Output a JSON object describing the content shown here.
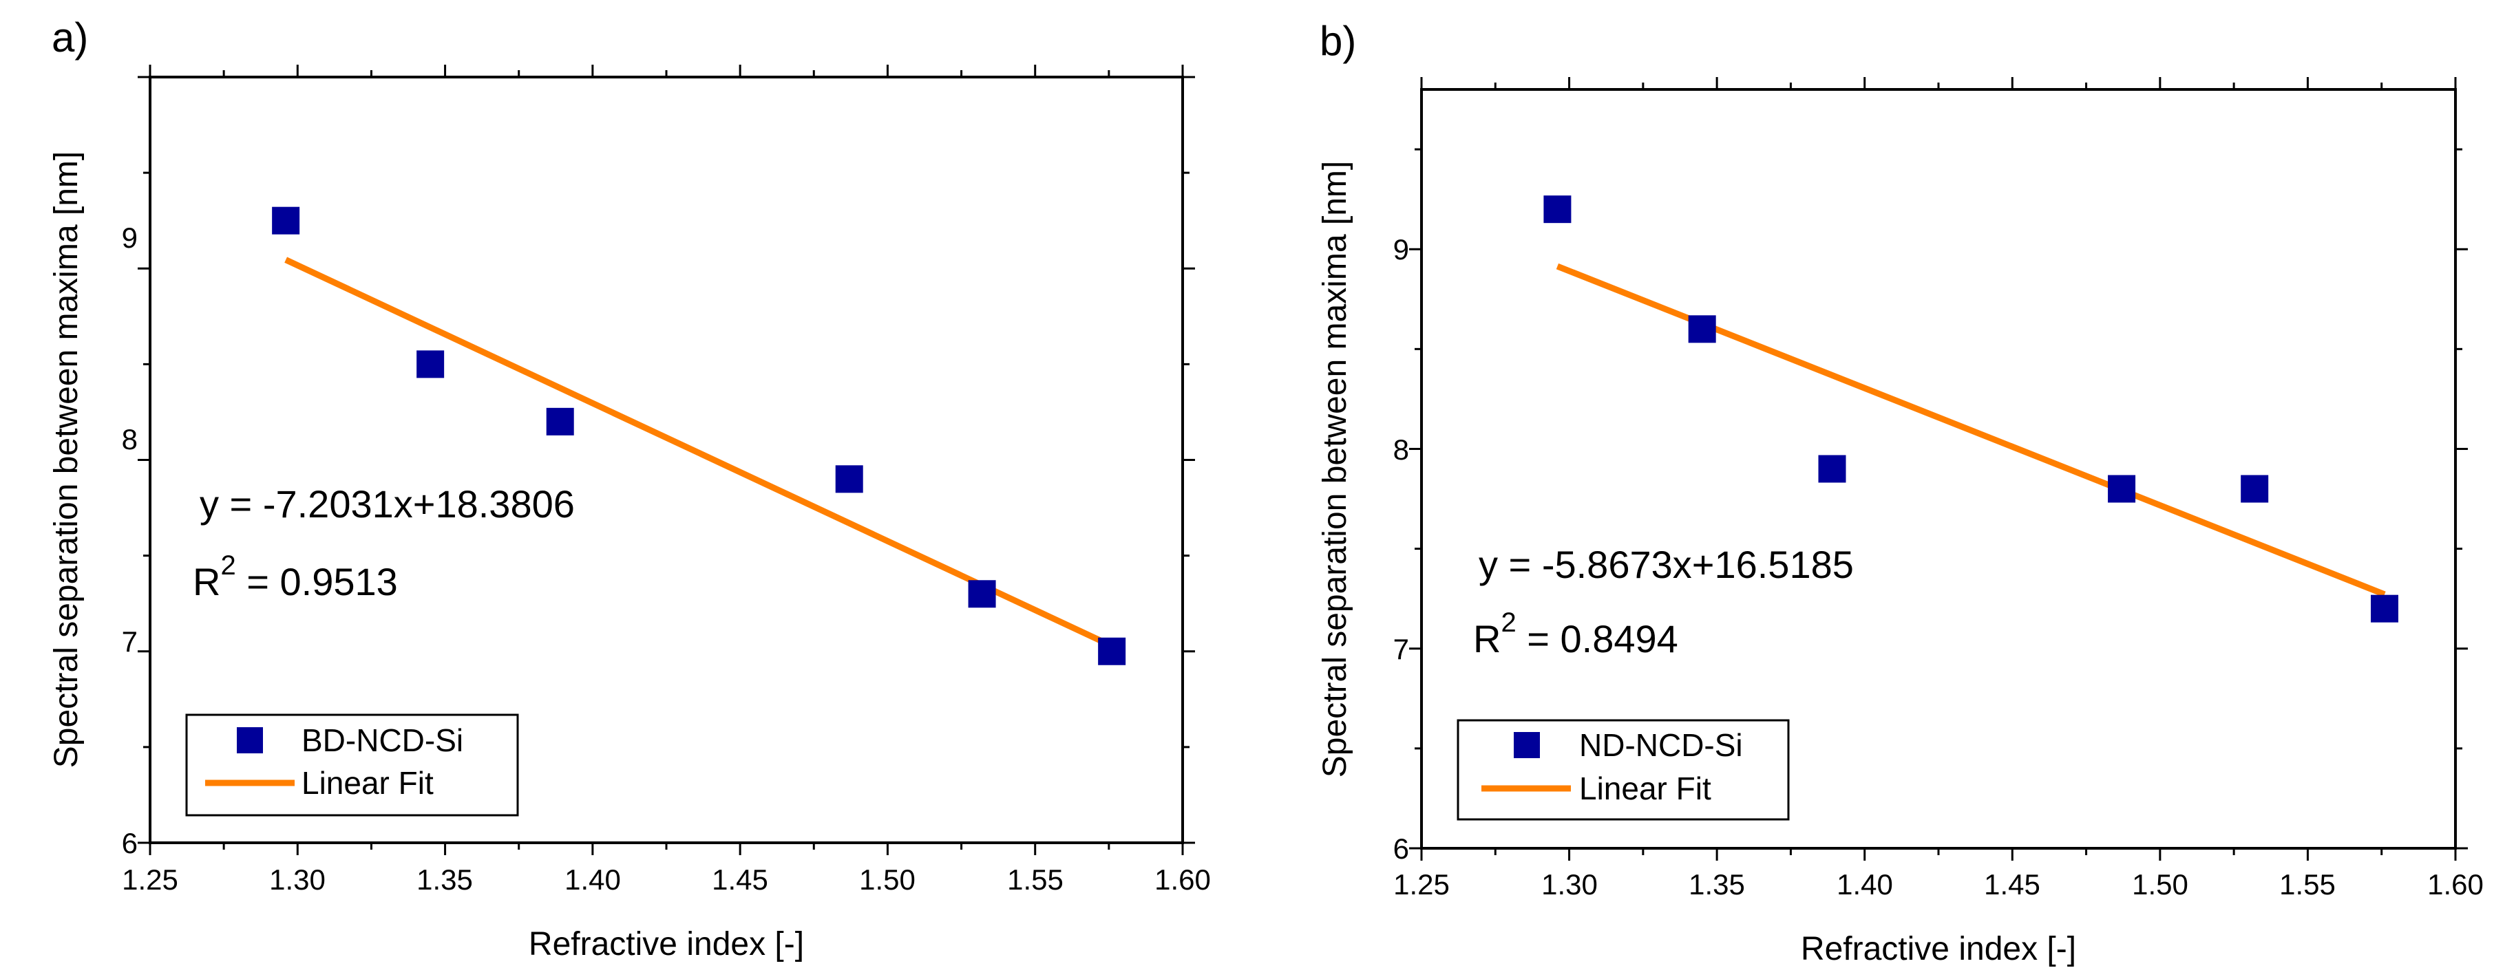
{
  "figure": {
    "panels": [
      {
        "label": "a)"
      },
      {
        "label": "b)"
      }
    ]
  },
  "chart_data": [
    {
      "panel": "a)",
      "type": "scatter",
      "title": "",
      "xlabel": "Refractive index [-]",
      "ylabel": "Spectral separation between maxima [nm]",
      "xlim": [
        1.25,
        1.6
      ],
      "ylim": [
        6,
        10
      ],
      "x_ticks": [
        "1.25",
        "1.30",
        "1.35",
        "1.40",
        "1.45",
        "1.50",
        "1.55",
        "1.60"
      ],
      "y_ticks": [
        "6",
        "7",
        "8",
        "9"
      ],
      "series": [
        {
          "name": "BD-NCD-Si",
          "kind": "scatter",
          "marker": "square",
          "color": "#000099",
          "x": [
            1.296,
            1.345,
            1.389,
            1.487,
            1.532,
            1.576
          ],
          "y": [
            9.25,
            8.5,
            8.2,
            7.9,
            7.3,
            7.0
          ]
        },
        {
          "name": "Linear Fit",
          "kind": "line",
          "color": "#FF7F00",
          "slope": -7.2031,
          "intercept": 18.3806,
          "x_range": [
            1.296,
            1.576
          ]
        }
      ],
      "annotations": {
        "equation": "y = -7.2031x+18.3806",
        "r2_prefix": "R",
        "r2_exponent": "2",
        "r2_suffix": " = 0.9513"
      },
      "legend": {
        "position": "bottom-left"
      }
    },
    {
      "panel": "b)",
      "type": "scatter",
      "title": "",
      "xlabel": "Refractive index [-]",
      "ylabel": "Spectral separation between maxima [nm]",
      "xlim": [
        1.25,
        1.6
      ],
      "ylim": [
        6,
        9.8
      ],
      "x_ticks": [
        "1.25",
        "1.30",
        "1.35",
        "1.40",
        "1.45",
        "1.50",
        "1.55",
        "1.60"
      ],
      "y_ticks": [
        "6",
        "7",
        "8",
        "9"
      ],
      "series": [
        {
          "name": "ND-NCD-Si",
          "kind": "scatter",
          "marker": "square",
          "color": "#000099",
          "x": [
            1.296,
            1.345,
            1.389,
            1.487,
            1.532,
            1.576
          ],
          "y": [
            9.2,
            8.6,
            7.9,
            7.8,
            7.8,
            7.2
          ]
        },
        {
          "name": "Linear Fit",
          "kind": "line",
          "color": "#FF7F00",
          "slope": -5.8673,
          "intercept": 16.5185,
          "x_range": [
            1.296,
            1.576
          ]
        }
      ],
      "annotations": {
        "equation": "y = -5.8673x+16.5185",
        "r2_prefix": "R",
        "r2_exponent": "2",
        "r2_suffix": " = 0.8494"
      },
      "legend": {
        "position": "bottom-left"
      }
    }
  ]
}
